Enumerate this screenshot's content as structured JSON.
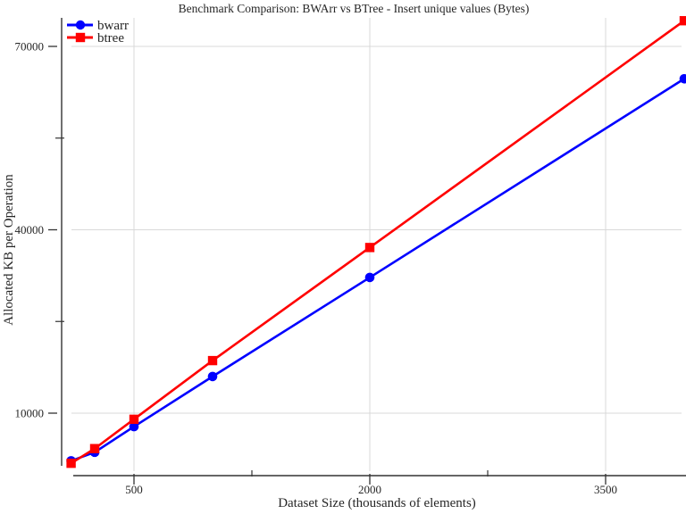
{
  "chart_data": {
    "type": "line",
    "title": "Benchmark Comparison: BWArr vs BTree - Insert unique values (Bytes)",
    "xlabel": "Dataset Size (thousands of elements)",
    "ylabel": "Allocated KB per Operation",
    "x": [
      100,
      250,
      500,
      1000,
      2000,
      4000
    ],
    "series": [
      {
        "name": "bwarr",
        "color": "#0000ff",
        "marker": "circle",
        "values": [
          2200,
          3600,
          7800,
          16000,
          32200,
          64700
        ]
      },
      {
        "name": "btree",
        "color": "#ff0000",
        "marker": "square",
        "values": [
          1800,
          4200,
          9000,
          18600,
          37100,
          74200
        ]
      }
    ],
    "x_ticks": [
      500,
      2000,
      3500
    ],
    "x_tick_labels": [
      "500",
      "2000",
      "3500"
    ],
    "x_minor_ticks": [
      1250,
      2750
    ],
    "y_ticks": [
      10000,
      40000,
      70000
    ],
    "y_tick_labels": [
      "10000",
      "40000",
      "70000"
    ],
    "y_minor_ticks": [
      25000,
      55000
    ],
    "xlim": [
      40,
      4010
    ],
    "ylim": [
      0,
      74700
    ],
    "grid": true,
    "legend_position": "top-left",
    "colors": {
      "grid": "#d9d9d9",
      "axis": "#333333",
      "text": "#262626",
      "background": "#ffffff"
    }
  }
}
